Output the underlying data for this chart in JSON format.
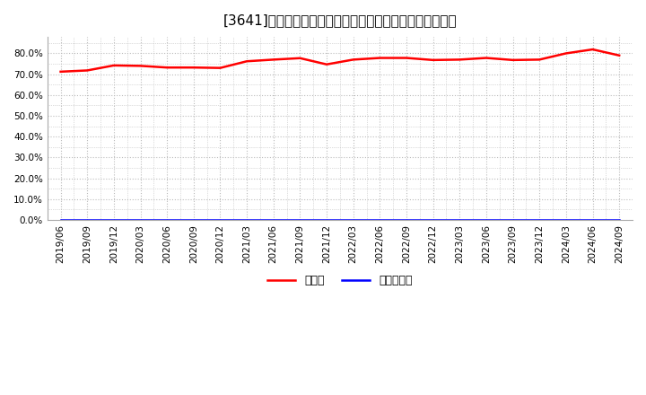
{
  "title": "[3641]　現預金、有利子負債の総資産に対する比率の推移",
  "x_labels": [
    "2019/06",
    "2019/09",
    "2019/12",
    "2020/03",
    "2020/06",
    "2020/09",
    "2020/12",
    "2021/03",
    "2021/06",
    "2021/09",
    "2021/12",
    "2022/03",
    "2022/06",
    "2022/09",
    "2022/12",
    "2023/03",
    "2023/06",
    "2023/09",
    "2023/12",
    "2024/03",
    "2024/06",
    "2024/09"
  ],
  "cash_values": [
    0.712,
    0.718,
    0.742,
    0.74,
    0.732,
    0.732,
    0.73,
    0.762,
    0.77,
    0.777,
    0.747,
    0.77,
    0.778,
    0.778,
    0.768,
    0.77,
    0.778,
    0.768,
    0.77,
    0.8,
    0.819,
    0.79
  ],
  "debt_values": [
    0.0,
    0.0,
    0.0,
    0.0,
    0.0,
    0.0,
    0.0,
    0.0,
    0.0,
    0.0,
    0.0,
    0.0,
    0.0,
    0.0,
    0.0,
    0.0,
    0.0,
    0.0,
    0.0,
    0.0,
    0.0,
    0.0
  ],
  "cash_color": "#ff0000",
  "debt_color": "#0000ff",
  "cash_label": "現預金",
  "debt_label": "有利子負債",
  "ylim": [
    0.0,
    0.88
  ],
  "yticks": [
    0.0,
    0.1,
    0.2,
    0.3,
    0.4,
    0.5,
    0.6,
    0.7,
    0.8
  ],
  "ytick_labels": [
    "0.0%",
    "10.0%",
    "20.0%",
    "30.0%",
    "40.0%",
    "50.0%",
    "60.0%",
    "70.0%",
    "80.0%"
  ],
  "background_color": "#ffffff",
  "plot_bg_color": "#ffffff",
  "grid_color": "#bbbbbb",
  "title_fontsize": 11,
  "axis_fontsize": 7.5,
  "legend_fontsize": 9,
  "line_width": 1.8
}
